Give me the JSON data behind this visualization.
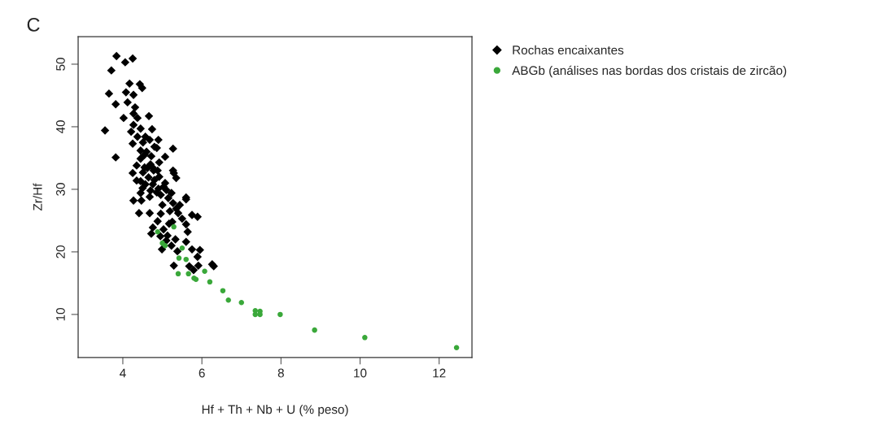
{
  "chart_data": {
    "type": "scatter",
    "xlabel": "Hf + Th + Nb + U (% peso)",
    "ylabel": "Zr/Hf",
    "annotations": [
      "C"
    ],
    "xlim": [
      2.87,
      12.83
    ],
    "ylim": [
      3.1,
      54.4
    ],
    "xticks": [
      4,
      6,
      8,
      10,
      12
    ],
    "yticks": [
      10,
      20,
      30,
      40,
      50
    ],
    "grid": false,
    "legend": "right",
    "series": [
      {
        "name": "Rochas encaixantes",
        "color": "#000000",
        "marker": "diamond",
        "x": [
          3.84,
          4.06,
          4.25,
          3.71,
          4.17,
          4.43,
          4.49,
          3.65,
          4.08,
          4.27,
          4.12,
          3.82,
          4.31,
          4.27,
          4.37,
          4.66,
          4.02,
          4.27,
          3.55,
          4.21,
          4.45,
          4.74,
          4.37,
          4.57,
          4.25,
          4.51,
          4.68,
          5.27,
          4.86,
          4.45,
          3.82,
          5.07,
          4.72,
          4.45,
          4.92,
          5.27,
          4.25,
          5.29,
          4.51,
          4.78,
          4.92,
          4.35,
          4.57,
          5.07,
          5.23,
          4.86,
          4.45,
          5.6,
          4.62,
          4.88,
          4.45,
          4.76,
          5.03,
          4.27,
          4.47,
          4.68,
          4.96,
          5.27,
          5.44,
          5.6,
          4.41,
          4.68,
          4.96,
          5.19,
          5.4,
          5.89,
          4.88,
          5.17,
          4.76,
          5.03,
          4.72,
          5.13,
          5.64,
          5.33,
          4.99,
          5.23,
          5.6,
          5.75,
          5.95,
          5.89,
          5.38,
          5.29,
          5.68,
          5.91,
          6.26,
          6.3,
          5.79,
          4.6,
          4.7,
          4.55,
          4.8,
          4.65,
          4.9,
          5.1,
          4.7,
          4.5,
          5.0,
          5.15,
          5.35,
          5.35,
          5.5,
          5.6,
          5.75,
          4.95,
          5.1,
          5.25,
          4.35,
          4.55,
          4.8,
          4.9,
          4.75
        ],
        "values": [
          51.3,
          50.3,
          50.9,
          49.0,
          46.9,
          46.8,
          46.2,
          45.3,
          45.5,
          45.1,
          43.9,
          43.6,
          43.1,
          42.1,
          41.4,
          41.7,
          41.4,
          40.3,
          39.4,
          39.2,
          39.7,
          39.6,
          38.4,
          38.4,
          37.3,
          37.5,
          37.9,
          36.5,
          36.6,
          36.2,
          35.1,
          35.2,
          35.3,
          34.9,
          34.3,
          33.0,
          32.6,
          32.6,
          32.7,
          33.0,
          32.0,
          31.4,
          30.8,
          31.0,
          29.4,
          29.5,
          29.4,
          28.7,
          33.4,
          33.0,
          31.3,
          30.8,
          30.4,
          28.2,
          28.2,
          28.8,
          29.1,
          27.8,
          27.5,
          28.4,
          26.2,
          26.2,
          26.1,
          26.5,
          26.2,
          25.6,
          24.9,
          24.5,
          23.9,
          23.6,
          22.9,
          22.6,
          23.2,
          22.0,
          20.4,
          21.0,
          21.6,
          20.4,
          20.3,
          19.2,
          20.1,
          17.8,
          17.7,
          17.8,
          18.0,
          17.7,
          17.1,
          36.0,
          34.0,
          33.5,
          31.5,
          31.9,
          30.1,
          29.9,
          29.8,
          30.2,
          27.5,
          28.6,
          31.8,
          26.9,
          25.3,
          24.4,
          25.9,
          22.5,
          21.8,
          24.8,
          33.8,
          35.5,
          36.8,
          37.9,
          33.5
        ]
      },
      {
        "name": "ABGb (análises nas bordas dos cristais de zircão)",
        "color": "#3aa83a",
        "marker": "circle",
        "x": [
          5.29,
          4.88,
          5.0,
          5.07,
          5.5,
          5.42,
          5.6,
          5.4,
          5.66,
          5.8,
          5.85,
          6.07,
          6.2,
          6.53,
          6.67,
          7.0,
          7.35,
          7.35,
          7.47,
          7.47,
          7.98,
          8.85,
          10.12,
          12.44
        ],
        "values": [
          24.0,
          23.2,
          21.4,
          21.0,
          20.6,
          19.0,
          18.8,
          16.5,
          16.5,
          15.8,
          15.6,
          16.9,
          15.2,
          13.8,
          12.3,
          11.9,
          10.6,
          10.0,
          10.5,
          10.0,
          10.0,
          7.5,
          6.3,
          4.7
        ]
      }
    ]
  }
}
